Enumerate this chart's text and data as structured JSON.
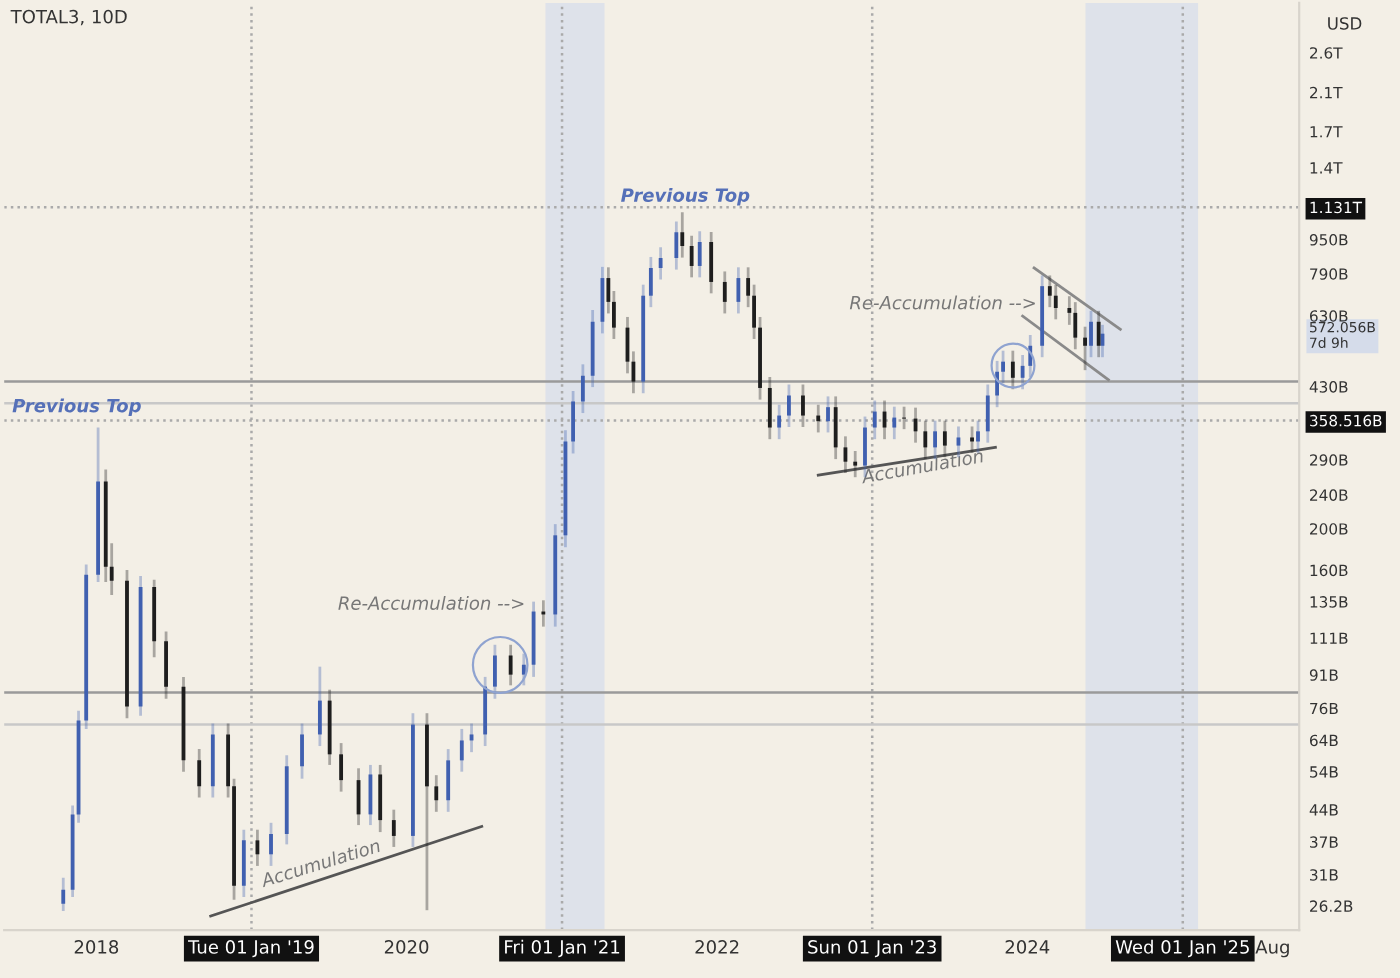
{
  "chart_data": {
    "type": "candlestick",
    "title": "TOTAL3, 10D",
    "ylabel": "USD",
    "log": true,
    "xlim": [
      "2017-05-29",
      "2025-10-02"
    ],
    "ylim": [
      23000000000.0,
      3400000000000.0
    ],
    "xticks": [
      {
        "value": "2018-01-01",
        "label": "2018"
      },
      {
        "value": "2019-01-01",
        "label": "Tue 01 Jan '19"
      },
      {
        "value": "2020-01-01",
        "label": "2020"
      },
      {
        "value": "2021-01-01",
        "label": "Fri 01 Jan '21"
      },
      {
        "value": "2022-01-01",
        "label": "2022"
      },
      {
        "value": "2023-01-01",
        "label": "Sun 01 Jan '23"
      },
      {
        "value": "2024-01-01",
        "label": "2024"
      },
      {
        "value": "2025-01-01",
        "label": "Wed 01 Jan '25"
      },
      {
        "value": "2025-08-01",
        "label": "Aug"
      }
    ],
    "yticks": [
      {
        "value": 26200000000.0,
        "label": "26.2B"
      },
      {
        "value": 31000000000.0,
        "label": "31B"
      },
      {
        "value": 37000000000.0,
        "label": "37B"
      },
      {
        "value": 44000000000.0,
        "label": "44B"
      },
      {
        "value": 54000000000.0,
        "label": "54B"
      },
      {
        "value": 64000000000.0,
        "label": "64B"
      },
      {
        "value": 76000000000.0,
        "label": "76B"
      },
      {
        "value": 91000000000.0,
        "label": "91B"
      },
      {
        "value": 111000000000.0,
        "label": "111B"
      },
      {
        "value": 135000000000.0,
        "label": "135B"
      },
      {
        "value": 160000000000.0,
        "label": "160B"
      },
      {
        "value": 200000000000.0,
        "label": "200B"
      },
      {
        "value": 240000000000.0,
        "label": "240B"
      },
      {
        "value": 290000000000.0,
        "label": "290B"
      },
      {
        "value": 358516000000.0,
        "label": "358.516B"
      },
      {
        "value": 430000000000.0,
        "label": "430B"
      },
      {
        "value": 572056000000.0,
        "label": "572.056B\n7d 9h"
      },
      {
        "value": 630000000000.0,
        "label": "630B"
      },
      {
        "value": 790000000000.0,
        "label": "790B"
      },
      {
        "value": 950000000000.0,
        "label": "950B"
      },
      {
        "value": 1131000000000.0,
        "label": "1.131T"
      },
      {
        "value": 1400000000000.0,
        "label": "1.4T"
      },
      {
        "value": 1700000000000.0,
        "label": "1.7T"
      },
      {
        "value": 2100000000000.0,
        "label": "2.1T"
      },
      {
        "value": 2600000000000.0,
        "label": "2.6T"
      }
    ],
    "series": [
      {
        "color": "#4060b0",
        "x": [
          "2017-10-15",
          "2017-11-06",
          "2017-11-20",
          "2017-12-08",
          "2018-01-05",
          "2018-04-15",
          "2018-10-02",
          "2018-12-14",
          "2019-02-16",
          "2019-03-25",
          "2019-04-30",
          "2019-06-11",
          "2019-10-08",
          "2020-01-16",
          "2020-04-08",
          "2020-05-10",
          "2020-06-02",
          "2020-07-04",
          "2020-07-27",
          "2020-10-03",
          "2020-10-26",
          "2020-12-16",
          "2021-01-09",
          "2021-01-27",
          "2021-02-19",
          "2021-03-14",
          "2021-04-06",
          "2021-07-11",
          "2021-07-29",
          "2021-08-21",
          "2021-09-27",
          "2021-11-21",
          "2022-02-20",
          "2022-05-27",
          "2022-06-19",
          "2022-09-19",
          "2022-12-15",
          "2023-01-07",
          "2023-02-22",
          "2023-05-29",
          "2023-07-23",
          "2023-09-07",
          "2023-09-30",
          "2023-10-22",
          "2023-11-05",
          "2023-12-21",
          "2024-01-08",
          "2024-02-05",
          "2024-05-30",
          "2024-06-26"
        ],
        "ohlc": [
          [
            26500000000.0,
            30500000000.0,
            25500000000.0,
            28600000000.0
          ],
          [
            28600000000.0,
            45000000000.0,
            27500000000.0,
            42900000000.0
          ],
          [
            42900000000.0,
            75000000000.0,
            41000000000.0,
            71200000000.0
          ],
          [
            71200000000.0,
            165000000000.0,
            68000000000.0,
            156000000000.0
          ],
          [
            156000000000.0,
            345000000000.0,
            150000000000.0,
            258000000000.0
          ],
          [
            76700000000.0,
            155000000000.0,
            73000000000.0,
            146000000000.0
          ],
          [
            49900000000.0,
            70000000000.0,
            47000000000.0,
            66000000000.0
          ],
          [
            29200000000.0,
            39500000000.0,
            27500000000.0,
            37300000000.0
          ],
          [
            34600000000.0,
            41000000000.0,
            32500000000.0,
            38600000000.0
          ],
          [
            38600000000.0,
            59000000000.0,
            36500000000.0,
            55600000000.0
          ],
          [
            55600000000.0,
            70000000000.0,
            52000000000.0,
            66000000000.0
          ],
          [
            66000000000.0,
            95100000000.0,
            62000000000.0,
            79200000000.0
          ],
          [
            42900000000.0,
            56000000000.0,
            40500000000.0,
            53200000000.0
          ],
          [
            38200000000.0,
            74000000000.0,
            36000000000.0,
            69600000000.0
          ],
          [
            46300000000.0,
            61000000000.0,
            43500000000.0,
            57400000000.0
          ],
          [
            57400000000.0,
            68000000000.0,
            54000000000.0,
            63900000000.0
          ],
          [
            63900000000.0,
            70000000000.0,
            60000000000.0,
            66000000000.0
          ],
          [
            66000000000.0,
            90000000000.0,
            62000000000.0,
            85400000000.0
          ],
          [
            85400000000.0,
            107000000000.0,
            80000000000.0,
            101000000000.0
          ],
          [
            91100000000.0,
            102000000000.0,
            86000000000.0,
            96100000000.0
          ],
          [
            96100000000.0,
            135000000000.0,
            90000000000.0,
            128000000000.0
          ],
          [
            126000000000.0,
            205000000000.0,
            118000000000.0,
            193000000000.0
          ],
          [
            193000000000.0,
            340000000000.0,
            181000000000.0,
            320000000000.0
          ],
          [
            320000000000.0,
            420000000000.0,
            300000000000.0,
            397000000000.0
          ],
          [
            397000000000.0,
            485000000000.0,
            373000000000.0,
            456000000000.0
          ],
          [
            456000000000.0,
            650000000000.0,
            429000000000.0,
            610000000000.0
          ],
          [
            610000000000.0,
            820000000000.0,
            573000000000.0,
            772000000000.0
          ],
          [
            442000000000.0,
            745000000000.0,
            415000000000.0,
            702000000000.0
          ],
          [
            702000000000.0,
            865000000000.0,
            660000000000.0,
            815000000000.0
          ],
          [
            815000000000.0,
            912000000000.0,
            766000000000.0,
            860000000000.0
          ],
          [
            860000000000.0,
            1047000000000.0,
            808000000000.0,
            988000000000.0
          ],
          [
            824000000000.0,
            993000000000.0,
            775000000000.0,
            937000000000.0
          ],
          [
            679000000000.0,
            818000000000.0,
            638000000000.0,
            772000000000.0
          ],
          [
            345000000000.0,
            390000000000.0,
            324000000000.0,
            368000000000.0
          ],
          [
            368000000000.0,
            435000000000.0,
            346000000000.0,
            410000000000.0
          ],
          [
            357000000000.0,
            408000000000.0,
            336000000000.0,
            385000000000.0
          ],
          [
            281000000000.0,
            366000000000.0,
            264000000000.0,
            345000000000.0
          ],
          [
            345000000000.0,
            399000000000.0,
            324000000000.0,
            376000000000.0
          ],
          [
            345000000000.0,
            386000000000.0,
            324000000000.0,
            364000000000.0
          ],
          [
            310000000000.0,
            358000000000.0,
            291000000000.0,
            338000000000.0
          ],
          [
            313000000000.0,
            347000000000.0,
            294000000000.0,
            327000000000.0
          ],
          [
            320000000000.0,
            358000000000.0,
            301000000000.0,
            338000000000.0
          ],
          [
            338000000000.0,
            435000000000.0,
            318000000000.0,
            410000000000.0
          ],
          [
            410000000000.0,
            494000000000.0,
            385000000000.0,
            466000000000.0
          ],
          [
            466000000000.0,
            522000000000.0,
            438000000000.0,
            492000000000.0
          ],
          [
            451000000000.0,
            510000000000.0,
            424000000000.0,
            481000000000.0
          ],
          [
            481000000000.0,
            568000000000.0,
            452000000000.0,
            536000000000.0
          ],
          [
            536000000000.0,
            783000000000.0,
            504000000000.0,
            739000000000.0
          ],
          [
            536000000000.0,
            647000000000.0,
            504000000000.0,
            610000000000.0
          ],
          [
            536000000000.0,
            600000000000.0,
            504000000000.0,
            572056000000.0
          ]
        ]
      },
      {
        "color": "#1e1e1e",
        "x": [
          "2018-01-23",
          "2018-02-06",
          "2018-03-14",
          "2018-05-17",
          "2018-06-14",
          "2018-07-25",
          "2018-08-31",
          "2018-11-07",
          "2018-11-21",
          "2019-01-15",
          "2019-07-04",
          "2019-07-31",
          "2019-09-10",
          "2019-10-31",
          "2019-12-02",
          "2020-02-18",
          "2020-03-11",
          "2020-09-02",
          "2020-11-18",
          "2021-04-20",
          "2021-05-03",
          "2021-06-04",
          "2021-06-18",
          "2021-10-11",
          "2021-11-02",
          "2021-12-18",
          "2022-01-19",
          "2022-03-15",
          "2022-03-29",
          "2022-04-12",
          "2022-05-05",
          "2022-07-22",
          "2022-08-27",
          "2022-10-07",
          "2022-10-30",
          "2022-11-22",
          "2023-01-30",
          "2023-03-17",
          "2023-04-13",
          "2023-05-06",
          "2023-06-21",
          "2023-08-24",
          "2023-11-28",
          "2024-02-23",
          "2024-03-08",
          "2024-04-09",
          "2024-04-23",
          "2024-05-16",
          "2024-06-17"
        ],
        "ohlc": [
          [
            258000000000.0,
            275000000000.0,
            150000000000.0,
            163000000000.0
          ],
          [
            163000000000.0,
            185000000000.0,
            140000000000.0,
            151000000000.0
          ],
          [
            151000000000.0,
            160000000000.0,
            72000000000.0,
            76700000000.0
          ],
          [
            146000000000.0,
            152000000000.0,
            100000000000.0,
            109000000000.0
          ],
          [
            109000000000.0,
            115000000000.0,
            80000000000.0,
            85400000000.0
          ],
          [
            85400000000.0,
            90000000000.0,
            54000000000.0,
            57400000000.0
          ],
          [
            57400000000.0,
            61000000000.0,
            47000000000.0,
            49900000000.0
          ],
          [
            66000000000.0,
            70000000000.0,
            47000000000.0,
            49900000000.0
          ],
          [
            49900000000.0,
            52000000000.0,
            27100000000.0,
            29200000000.0
          ],
          [
            37300000000.0,
            39500000000.0,
            32500000000.0,
            34600000000.0
          ],
          [
            79200000000.0,
            84000000000.0,
            56000000000.0,
            59300000000.0
          ],
          [
            59300000000.0,
            63000000000.0,
            48500000000.0,
            51600000000.0
          ],
          [
            51600000000.0,
            55000000000.0,
            40500000000.0,
            42900000000.0
          ],
          [
            53200000000.0,
            56000000000.0,
            39000000000.0,
            41600000000.0
          ],
          [
            41600000000.0,
            44000000000.0,
            36000000000.0,
            38200000000.0
          ],
          [
            69600000000.0,
            74000000000.0,
            25600000000.0,
            49900000000.0
          ],
          [
            49900000000.0,
            53000000000.0,
            43500000000.0,
            46300000000.0
          ],
          [
            101000000000.0,
            107000000000.0,
            86000000000.0,
            91100000000.0
          ],
          [
            128000000000.0,
            136000000000.0,
            118000000000.0,
            126000000000.0
          ],
          [
            772000000000.0,
            818000000000.0,
            638000000000.0,
            679000000000.0
          ],
          [
            679000000000.0,
            720000000000.0,
            556000000000.0,
            591000000000.0
          ],
          [
            591000000000.0,
            626000000000.0,
            462000000000.0,
            492000000000.0
          ],
          [
            492000000000.0,
            520000000000.0,
            415000000000.0,
            442000000000.0
          ],
          [
            988000000000.0,
            1101000000000.0,
            862000000000.0,
            917000000000.0
          ],
          [
            917000000000.0,
            970000000000.0,
            775000000000.0,
            824000000000.0
          ],
          [
            937000000000.0,
            990000000000.0,
            711000000000.0,
            756000000000.0
          ],
          [
            756000000000.0,
            800000000000.0,
            638000000000.0,
            679000000000.0
          ],
          [
            772000000000.0,
            818000000000.0,
            660000000000.0,
            702000000000.0
          ],
          [
            702000000000.0,
            745000000000.0,
            556000000000.0,
            591000000000.0
          ],
          [
            591000000000.0,
            626000000000.0,
            401000000000.0,
            427000000000.0
          ],
          [
            427000000000.0,
            453000000000.0,
            324000000000.0,
            345000000000.0
          ],
          [
            410000000000.0,
            435000000000.0,
            346000000000.0,
            368000000000.0
          ],
          [
            368000000000.0,
            390000000000.0,
            336000000000.0,
            357000000000.0
          ],
          [
            385000000000.0,
            408000000000.0,
            291000000000.0,
            310000000000.0
          ],
          [
            310000000000.0,
            329000000000.0,
            270000000000.0,
            287000000000.0
          ],
          [
            287000000000.0,
            304000000000.0,
            264000000000.0,
            281000000000.0
          ],
          [
            376000000000.0,
            399000000000.0,
            324000000000.0,
            345000000000.0
          ],
          [
            364000000000.0,
            386000000000.0,
            342000000000.0,
            362000000000.0
          ],
          [
            362000000000.0,
            384000000000.0,
            318000000000.0,
            338000000000.0
          ],
          [
            338000000000.0,
            358000000000.0,
            291000000000.0,
            310000000000.0
          ],
          [
            338000000000.0,
            358000000000.0,
            294000000000.0,
            313000000000.0
          ],
          [
            327000000000.0,
            347000000000.0,
            301000000000.0,
            320000000000.0
          ],
          [
            492000000000.0,
            522000000000.0,
            424000000000.0,
            451000000000.0
          ],
          [
            739000000000.0,
            783000000000.0,
            660000000000.0,
            702000000000.0
          ],
          [
            702000000000.0,
            744000000000.0,
            618000000000.0,
            657000000000.0
          ],
          [
            657000000000.0,
            700000000000.0,
            600000000000.0,
            640000000000.0
          ],
          [
            640000000000.0,
            678000000000.0,
            526000000000.0,
            560000000000.0
          ],
          [
            560000000000.0,
            594000000000.0,
            470000000000.0,
            536000000000.0
          ],
          [
            610000000000.0,
            647000000000.0,
            504000000000.0,
            536000000000.0
          ]
        ]
      },
      {
        "type": "line",
        "color": "#555555",
        "x": [
          "2018-09-27",
          "2020-06-26"
        ],
        "values": [
          24800000000.0,
          40200000000.0
        ]
      },
      {
        "type": "line",
        "color": "#555555",
        "x": [
          "2022-08-27",
          "2023-10-18"
        ],
        "values": [
          267000000000.0,
          310000000000.0
        ]
      },
      {
        "type": "line",
        "color": "#8a8a8a",
        "x": [
          "2024-01-17",
          "2024-08-07"
        ],
        "values": [
          815000000000.0,
          586000000000.0
        ]
      },
      {
        "type": "line",
        "color": "#8a8a8a",
        "x": [
          "2023-12-21",
          "2024-07-10"
        ],
        "values": [
          629000000000.0,
          446000000000.0
        ]
      }
    ],
    "ref_lines": [
      {
        "axis": "x",
        "value": "2019-01-01",
        "color": "#aaaaaa",
        "line_style": "dotted"
      },
      {
        "axis": "x",
        "value": "2021-01-01",
        "color": "#aaaaaa",
        "line_style": "dotted"
      },
      {
        "axis": "x",
        "value": "2023-01-01",
        "color": "#aaaaaa",
        "line_style": "dotted"
      },
      {
        "axis": "x",
        "value": "2025-01-01",
        "color": "#aaaaaa",
        "line_style": "dotted"
      },
      {
        "axis": "y",
        "value": 1131000000000.0,
        "color": "#aaaaaa",
        "line_style": "dotted"
      },
      {
        "axis": "y",
        "value": 358516000000.0,
        "color": "#aaaaaa",
        "line_style": "dotted"
      },
      {
        "axis": "y",
        "value": 442000000000.0,
        "color": "#9a9a9a",
        "line_style": "solid"
      },
      {
        "axis": "y",
        "value": 393000000000.0,
        "color": "#c8c8c8",
        "line_style": "solid"
      },
      {
        "axis": "y",
        "value": 82700000000.0,
        "color": "#9a9a9a",
        "line_style": "solid"
      },
      {
        "axis": "y",
        "value": 69600000000.0,
        "color": "#c8c8c8",
        "line_style": "solid"
      }
    ],
    "bands": [
      {
        "axis": "x",
        "from": "2020-11-23",
        "to": "2021-04-11",
        "color": "#dbe0ea"
      },
      {
        "axis": "x",
        "from": "2024-05-17",
        "to": "2025-02-06",
        "color": "#dbe0ea"
      }
    ],
    "annotations": [
      {
        "text": "Previous Top",
        "x": "2017-11-16",
        "y": 385000000000.0
      },
      "Previous Top",
      "Re-Accumulation -->",
      "Accumulation",
      "Re-Accumulation -->",
      {
        "text": "Accumulation",
        "x": "2023-05-01",
        "y": 278000000000.0
      }
    ],
    "grid": false,
    "legend": false
  }
}
